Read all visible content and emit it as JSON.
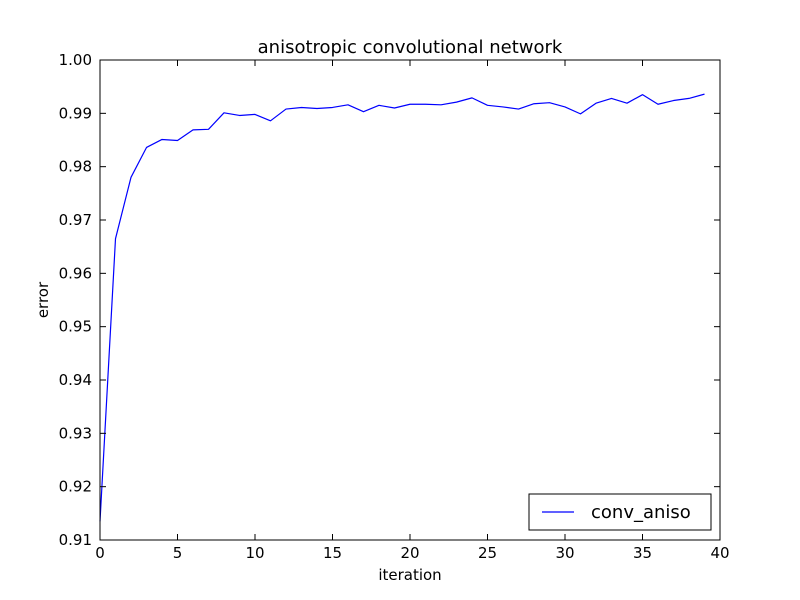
{
  "chart_data": {
    "type": "line",
    "title": "anisotropic convolutional network",
    "xlabel": "iteration",
    "ylabel": "error",
    "xlim": [
      0,
      40
    ],
    "ylim": [
      0.91,
      1.0
    ],
    "xticks": [
      "0",
      "5",
      "10",
      "15",
      "20",
      "25",
      "30",
      "35",
      "40"
    ],
    "yticks": [
      "0.91",
      "0.92",
      "0.93",
      "0.94",
      "0.95",
      "0.96",
      "0.97",
      "0.98",
      "0.99",
      "1.00"
    ],
    "grid": false,
    "legend_position": "lower-right",
    "series": [
      {
        "name": "conv_aniso",
        "color": "#0000ff",
        "x": [
          0,
          1,
          2,
          3,
          4,
          5,
          6,
          7,
          8,
          9,
          10,
          11,
          12,
          13,
          14,
          15,
          16,
          17,
          18,
          19,
          20,
          21,
          22,
          23,
          24,
          25,
          26,
          27,
          28,
          29,
          30,
          31,
          32,
          33,
          34,
          35,
          36,
          37,
          38,
          39
        ],
        "values": [
          0.9135,
          0.9665,
          0.978,
          0.9836,
          0.9851,
          0.9849,
          0.9869,
          0.987,
          0.9901,
          0.9896,
          0.9898,
          0.9886,
          0.9908,
          0.9911,
          0.9909,
          0.9911,
          0.9916,
          0.9903,
          0.9915,
          0.991,
          0.9917,
          0.9917,
          0.9916,
          0.9921,
          0.9929,
          0.9915,
          0.9912,
          0.9908,
          0.9918,
          0.992,
          0.9912,
          0.9899,
          0.9919,
          0.9928,
          0.9919,
          0.9935,
          0.9917,
          0.9924,
          0.9928,
          0.9936
        ]
      }
    ]
  }
}
